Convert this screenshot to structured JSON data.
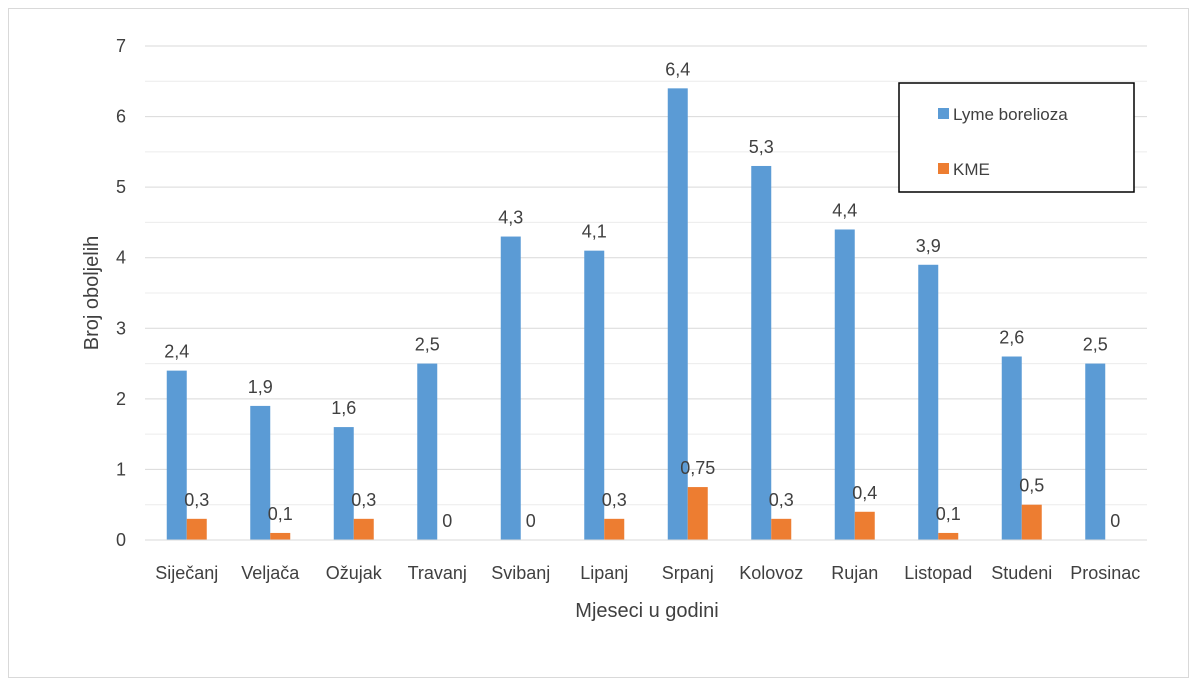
{
  "chart_data": {
    "type": "bar",
    "categories": [
      "Siječanj",
      "Veljača",
      "Ožujak",
      "Travanj",
      "Svibanj",
      "Lipanj",
      "Srpanj",
      "Kolovoz",
      "Rujan",
      "Listopad",
      "Studeni",
      "Prosinac"
    ],
    "series": [
      {
        "name": "Lyme borelioza",
        "color": "#5b9bd5",
        "values": [
          2.4,
          1.9,
          1.6,
          2.5,
          4.3,
          4.1,
          6.4,
          5.3,
          4.4,
          3.9,
          2.6,
          2.5
        ],
        "labels": [
          "2,4",
          "1,9",
          "1,6",
          "2,5",
          "4,3",
          "4,1",
          "6,4",
          "5,3",
          "4,4",
          "3,9",
          "2,6",
          "2,5"
        ]
      },
      {
        "name": "KME",
        "color": "#ed7d31",
        "values": [
          0.3,
          0.1,
          0.3,
          0,
          0,
          0.3,
          0.75,
          0.3,
          0.4,
          0.1,
          0.5,
          0
        ],
        "labels": [
          "0,3",
          "0,1",
          "0,3",
          "0",
          "0",
          "0,3",
          "0,75",
          "0,3",
          "0,4",
          "0,1",
          "0,5",
          "0"
        ]
      }
    ],
    "xlabel": "Mjeseci u godini",
    "ylabel": "Broj oboljelih",
    "ylim": [
      0,
      7
    ],
    "yticks": [
      "0",
      "1",
      "2",
      "3",
      "4",
      "5",
      "6",
      "7"
    ],
    "grid": true,
    "legend_position": "top-right"
  }
}
